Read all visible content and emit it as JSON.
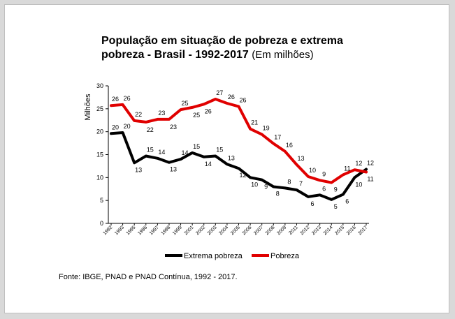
{
  "title_line1": "População em situação de pobreza e extrema",
  "title_line2": "pobreza - Brasil - 1992-2017",
  "title_unit": "(Em milhões)",
  "source": "Fonte: IBGE, PNAD e PNAD Contínua, 1992 - 2017.",
  "chart_data": {
    "type": "line",
    "ylabel": "Milhões",
    "xlabel": "",
    "ylim": [
      0,
      30
    ],
    "yticks": [
      0,
      5,
      10,
      15,
      20,
      25,
      30
    ],
    "grid": false,
    "legend_position": "bottom",
    "categories": [
      "1992",
      "1993",
      "1995",
      "1996",
      "1997",
      "1998",
      "1999",
      "2001",
      "2002",
      "2003",
      "2004",
      "2005",
      "2006",
      "2007",
      "2008",
      "2009",
      "2011",
      "2012",
      "2013",
      "2014",
      "2015",
      "2016",
      "2017"
    ],
    "series": [
      {
        "name": "Extrema pobreza",
        "color": "#000000",
        "values": [
          19.6,
          19.8,
          13.2,
          14.7,
          14.2,
          13.3,
          14.0,
          15.4,
          14.5,
          14.7,
          12.9,
          12.0,
          10.0,
          9.5,
          8.0,
          7.7,
          7.3,
          5.8,
          6.2,
          5.2,
          6.3,
          10.0,
          11.8
        ],
        "labels": [
          "20",
          "20",
          "13",
          "15",
          "14",
          "13",
          "14",
          "15",
          "14",
          "15",
          "13",
          "12",
          "10",
          "9",
          "8",
          "8",
          "7",
          "6",
          "6",
          "5",
          "6",
          "10",
          "12"
        ]
      },
      {
        "name": "Pobreza",
        "color": "#e00000",
        "values": [
          25.7,
          25.9,
          22.4,
          22.1,
          22.7,
          22.7,
          24.8,
          25.3,
          26.0,
          27.1,
          26.2,
          25.5,
          20.6,
          19.4,
          17.4,
          15.7,
          12.8,
          10.2,
          9.4,
          8.9,
          10.6,
          11.7,
          11.2
        ],
        "labels": [
          "26",
          "26",
          "22",
          "22",
          "23",
          "23",
          "25",
          "25",
          "26",
          "27",
          "26",
          "26",
          "21",
          "19",
          "17",
          "16",
          "13",
          "10",
          "9",
          "9",
          "11",
          "12",
          "11"
        ]
      }
    ]
  }
}
